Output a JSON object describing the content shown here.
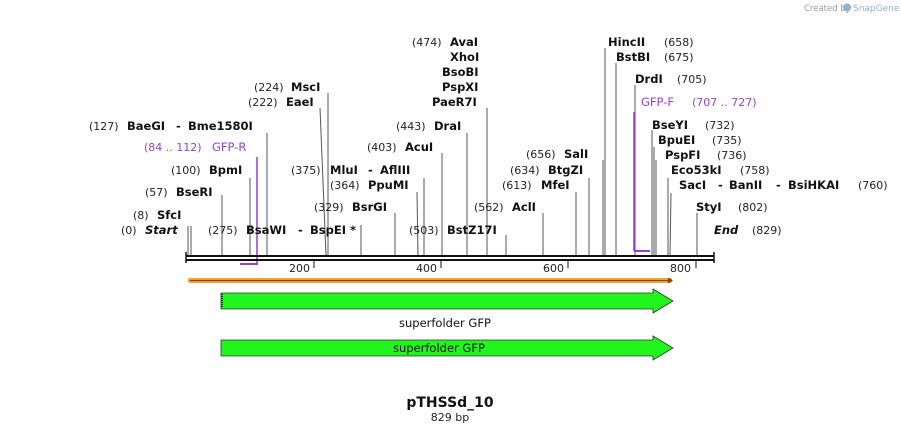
{
  "credit": {
    "text": "Created by",
    "brand": "SnapGene"
  },
  "map": {
    "start_pos": "(0)",
    "start_label": "Start",
    "end_pos": "(829)",
    "end_label": "End",
    "ticks": [
      "200",
      "400",
      "600",
      "800"
    ]
  },
  "sites": {
    "sfci": {
      "num": "(8)",
      "name": "SfcI"
    },
    "bseri": {
      "num": "(57)",
      "name": "BseRI"
    },
    "bpmi": {
      "num": "(100)",
      "name": "BpmI"
    },
    "baegi": {
      "num": "(127)",
      "name": "BaeGI",
      "name2": "Bme1580I"
    },
    "eaei": {
      "num": "(222)",
      "name": "EaeI"
    },
    "msci": {
      "num": "(224)",
      "name": "MscI"
    },
    "bsawi": {
      "num": "(275)",
      "name": "BsaWI",
      "name2": "BspEI",
      "star": "*"
    },
    "bsrgi": {
      "num": "(329)",
      "name": "BsrGI"
    },
    "ppumi": {
      "num": "(364)",
      "name": "PpuMI"
    },
    "mlui": {
      "num": "(375)",
      "name": "MluI",
      "name2": "AflIII"
    },
    "acui": {
      "num": "(403)",
      "name": "AcuI"
    },
    "drai": {
      "num": "(443)",
      "name": "DraI"
    },
    "bstz17i": {
      "num": "(503)",
      "name": "BstZ17I"
    },
    "avai": {
      "num": "(474)",
      "name": "AvaI",
      "group": [
        "XhoI",
        "BsoBI",
        "PspXI",
        "PaeR7I"
      ]
    },
    "acli": {
      "num": "(562)",
      "name": "AclI"
    },
    "mfei": {
      "num": "(613)",
      "name": "MfeI"
    },
    "btgzi": {
      "num": "(634)",
      "name": "BtgZI"
    },
    "sali": {
      "num": "(656)",
      "name": "SalI"
    },
    "hincii": {
      "num": "(658)",
      "name": "HincII"
    },
    "bstbi": {
      "num": "(675)",
      "name": "BstBI"
    },
    "drdi": {
      "num": "(705)",
      "name": "DrdI"
    },
    "bseyi": {
      "num": "(732)",
      "name": "BseYI"
    },
    "bpuei": {
      "num": "(735)",
      "name": "BpuEI"
    },
    "pspfi": {
      "num": "(736)",
      "name": "PspFI"
    },
    "eco53ki": {
      "num": "(758)",
      "name": "Eco53kI"
    },
    "saci": {
      "num": "(760)",
      "name": "SacI",
      "name2": "BanII",
      "name3": "BsiHKAI"
    },
    "styi": {
      "num": "(802)",
      "name": "StyI"
    }
  },
  "primers": {
    "gfp_r": {
      "range": "(84 .. 112)",
      "name": "GFP-R"
    },
    "gfp_f": {
      "name": "GFP-F",
      "range": "(707 .. 727)"
    }
  },
  "features": {
    "feature1_label": "superfolder GFP",
    "feature2_label": "superfolder GFP"
  },
  "colors": {
    "primer": "#9b3fd0",
    "feature_green": "#22f51e",
    "orf_orange": "#f0a030"
  },
  "title": {
    "name": "pTHSSd_10",
    "size": "829 bp"
  }
}
